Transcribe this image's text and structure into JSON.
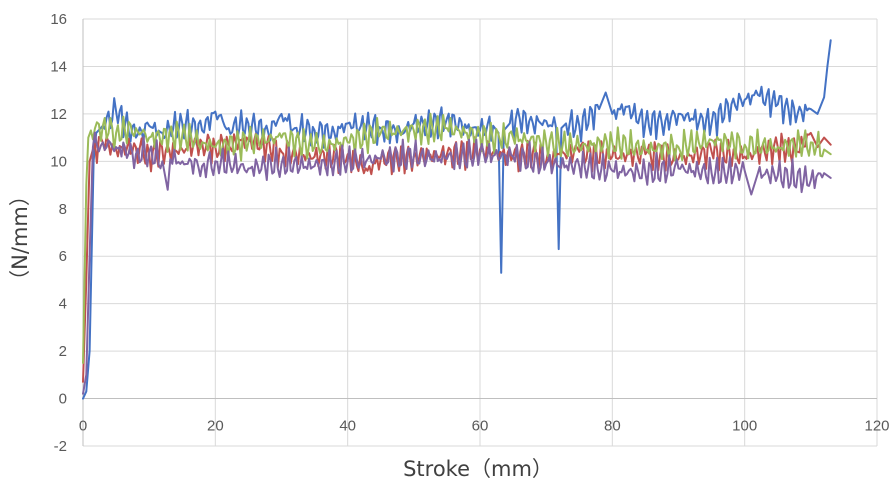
{
  "chart_data": {
    "type": "line",
    "xlabel": "Stroke（mm）",
    "ylabel": "（N/mm）",
    "xlim": [
      0,
      120
    ],
    "ylim": [
      -2,
      16
    ],
    "x_ticks": [
      0,
      20,
      40,
      60,
      80,
      100,
      120
    ],
    "y_ticks": [
      -2,
      0,
      2,
      4,
      6,
      8,
      10,
      12,
      14,
      16
    ],
    "grid": true,
    "legend": "none",
    "series": [
      {
        "color": "#4472c4",
        "x": [
          0,
          0.5,
          1.0,
          1.3,
          1.6,
          2.0,
          3,
          5,
          8,
          10,
          12,
          15,
          18,
          20,
          22,
          25,
          28,
          30,
          32,
          35,
          38,
          40,
          42,
          45,
          48,
          50,
          52,
          55,
          58,
          60,
          62,
          62.8,
          63.2,
          63.6,
          64.5,
          66,
          68,
          70,
          71.5,
          71.9,
          72.3,
          73,
          75,
          78,
          79,
          80,
          82,
          85,
          88,
          90,
          92,
          95,
          98,
          100,
          102,
          105,
          108,
          110,
          111,
          112,
          112.5,
          113
        ],
        "y": [
          0,
          0.3,
          2,
          6,
          10,
          11.2,
          11.5,
          12.1,
          11.0,
          11.5,
          11.2,
          11.6,
          11.3,
          12.1,
          11.4,
          11.6,
          11.2,
          12.0,
          11.4,
          11.3,
          11.2,
          11.6,
          11.5,
          11.4,
          11.2,
          11.6,
          11.5,
          11.8,
          11.4,
          11.3,
          11.5,
          11.2,
          5.3,
          11.3,
          11.6,
          11.8,
          11.6,
          11.7,
          11.4,
          6.3,
          11.4,
          11.6,
          11.5,
          12.2,
          12.9,
          12.0,
          12.3,
          11.6,
          11.7,
          12.0,
          11.8,
          11.6,
          12.4,
          12.6,
          12.8,
          12.4,
          12.0,
          12.2,
          12.0,
          12.7,
          14.0,
          15.1
        ]
      },
      {
        "color": "#c0504d",
        "x": [
          0,
          0.5,
          1.0,
          1.5,
          3,
          5,
          8,
          10,
          15,
          18,
          20,
          22,
          25,
          30,
          35,
          40,
          43,
          45,
          50,
          55,
          60,
          65,
          68,
          70,
          72,
          75,
          80,
          85,
          90,
          95,
          100,
          105,
          108,
          110,
          111,
          112,
          113
        ],
        "y": [
          0.7,
          5,
          10,
          10.5,
          10.8,
          10.5,
          10.6,
          10.3,
          10.5,
          10.8,
          10.6,
          10.7,
          10.9,
          10.4,
          10.2,
          10.3,
          9.6,
          10.1,
          10.2,
          10.3,
          10.5,
          10.2,
          10.4,
          10.0,
          10.3,
          10.4,
          10.2,
          10.3,
          10.1,
          10.4,
          10.2,
          10.6,
          10.4,
          11.2,
          10.6,
          11.0,
          10.7
        ]
      },
      {
        "color": "#9bbb59",
        "x": [
          0,
          0.5,
          0.8,
          1.2,
          3,
          5,
          8,
          10,
          15,
          18,
          20,
          25,
          30,
          35,
          40,
          45,
          50,
          55,
          58,
          60,
          63,
          65,
          70,
          75,
          80,
          85,
          90,
          95,
          100,
          105,
          110,
          112,
          113
        ],
        "y": [
          1.5,
          9,
          11,
          11.3,
          11.5,
          11.2,
          11.4,
          11.0,
          11.1,
          10.8,
          10.6,
          10.8,
          11.0,
          10.6,
          10.8,
          11.2,
          11.3,
          11.4,
          11.2,
          11.1,
          10.9,
          11.0,
          10.8,
          10.6,
          10.8,
          10.5,
          10.6,
          10.9,
          10.7,
          10.6,
          10.8,
          10.5,
          10.3
        ]
      },
      {
        "color": "#8064a2",
        "x": [
          0,
          0.5,
          1.0,
          1.5,
          3,
          5,
          8,
          10,
          12,
          12.8,
          13.2,
          15,
          18,
          20,
          25,
          30,
          35,
          40,
          45,
          50,
          55,
          60,
          65,
          70,
          75,
          80,
          85,
          90,
          95,
          100,
          101,
          102,
          105,
          110,
          112,
          113
        ],
        "y": [
          0.2,
          1,
          6,
          10.6,
          10.8,
          10.6,
          10.3,
          10.4,
          10.0,
          8.8,
          10.1,
          10.0,
          9.8,
          10.0,
          9.7,
          9.9,
          9.8,
          10.0,
          10.1,
          10.2,
          10.1,
          10.3,
          10.2,
          9.9,
          9.8,
          9.6,
          9.5,
          9.7,
          9.5,
          9.6,
          8.6,
          9.5,
          9.4,
          9.2,
          9.5,
          9.3
        ]
      }
    ]
  }
}
